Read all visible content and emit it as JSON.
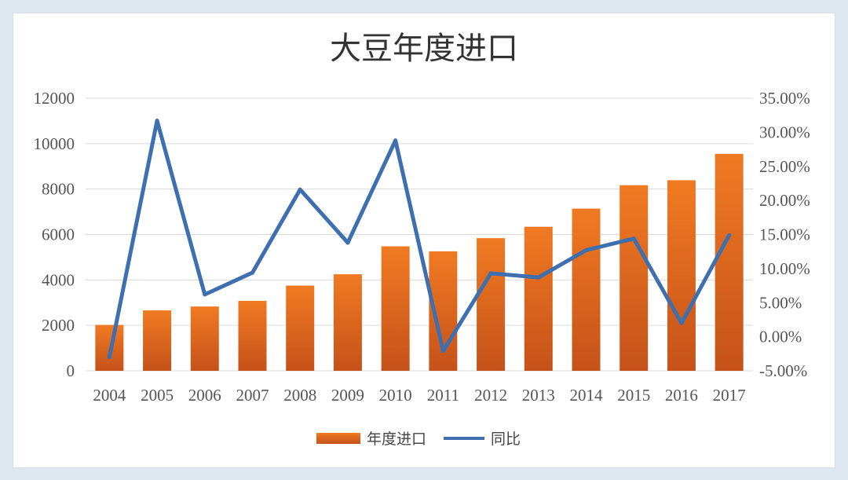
{
  "chart_data": {
    "type": "bar",
    "title": "大豆年度进口",
    "categories": [
      "2004",
      "2005",
      "2006",
      "2007",
      "2008",
      "2009",
      "2010",
      "2011",
      "2012",
      "2013",
      "2014",
      "2015",
      "2016",
      "2017"
    ],
    "series": [
      {
        "name": "年度进口",
        "type": "bar",
        "axis": "left",
        "values": [
          2020,
          2660,
          2830,
          3080,
          3750,
          4250,
          5480,
          5260,
          5840,
          6340,
          7140,
          8170,
          8390,
          9550
        ]
      },
      {
        "name": "同比",
        "type": "line",
        "axis": "right",
        "values": [
          -3.0,
          31.7,
          6.2,
          9.4,
          21.6,
          13.8,
          28.8,
          -2.1,
          9.3,
          8.7,
          12.7,
          14.4,
          2.0,
          14.9
        ]
      }
    ],
    "y_left": {
      "min": 0,
      "max": 12000,
      "ticks": [
        "0",
        "2000",
        "4000",
        "6000",
        "8000",
        "10000",
        "12000"
      ]
    },
    "y_right": {
      "min": -5,
      "max": 35,
      "ticks": [
        "-5.00%",
        "0.00%",
        "5.00%",
        "10.00%",
        "15.00%",
        "20.00%",
        "25.00%",
        "30.00%",
        "35.00%"
      ]
    },
    "grid": true,
    "legend_position": "bottom",
    "colors": {
      "bar_top": "#f07a22",
      "bar_bottom": "#c5521a",
      "line": "#3e6fae",
      "grid": "#d9d9d9"
    }
  }
}
